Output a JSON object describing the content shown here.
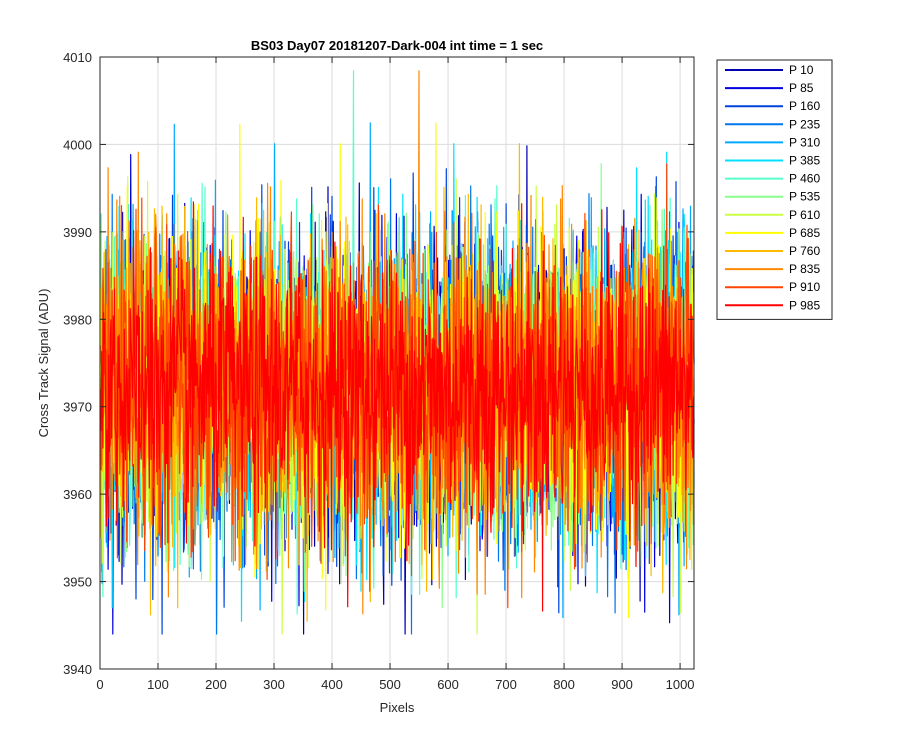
{
  "chart_data": {
    "type": "line",
    "title": "BS03 Day07 20181207-Dark-004 int time = 1 sec",
    "xlabel": "Pixels",
    "ylabel": "Cross Track Signal (ADU)",
    "xlim": [
      0,
      1024
    ],
    "ylim": [
      3940,
      4010
    ],
    "xticks": [
      0,
      100,
      200,
      300,
      400,
      500,
      600,
      700,
      800,
      900,
      1000
    ],
    "yticks": [
      3940,
      3950,
      3960,
      3970,
      3980,
      3990,
      4000,
      4010
    ],
    "grid": true,
    "legend_position": "outside-top-right",
    "series": [
      {
        "name": "P 10",
        "color": "#0000b0",
        "mean": 3972,
        "std": 8.5
      },
      {
        "name": "P 85",
        "color": "#0000e0",
        "mean": 3972,
        "std": 8.5
      },
      {
        "name": "P 160",
        "color": "#0044dd",
        "mean": 3972,
        "std": 8.5
      },
      {
        "name": "P 235",
        "color": "#0077ee",
        "mean": 3972,
        "std": 8.5
      },
      {
        "name": "P 310",
        "color": "#00aaff",
        "mean": 3972,
        "std": 8.5
      },
      {
        "name": "P 385",
        "color": "#00e0ff",
        "mean": 3972,
        "std": 8.5
      },
      {
        "name": "P 460",
        "color": "#55ffcc",
        "mean": 3972,
        "std": 8.5
      },
      {
        "name": "P 535",
        "color": "#88ff88",
        "mean": 3972,
        "std": 8.5
      },
      {
        "name": "P 610",
        "color": "#ccff44",
        "mean": 3972,
        "std": 8.5
      },
      {
        "name": "P 685",
        "color": "#ffff00",
        "mean": 3972,
        "std": 8.5
      },
      {
        "name": "P 760",
        "color": "#ffbb00",
        "mean": 3972,
        "std": 8.5
      },
      {
        "name": "P 835",
        "color": "#ff8800",
        "mean": 3972,
        "std": 8.5
      },
      {
        "name": "P 910",
        "color": "#ff4400",
        "mean": 3972,
        "std": 8.5
      },
      {
        "name": "P 985",
        "color": "#ff0000",
        "mean": 3972,
        "std": 7.5
      }
    ]
  }
}
